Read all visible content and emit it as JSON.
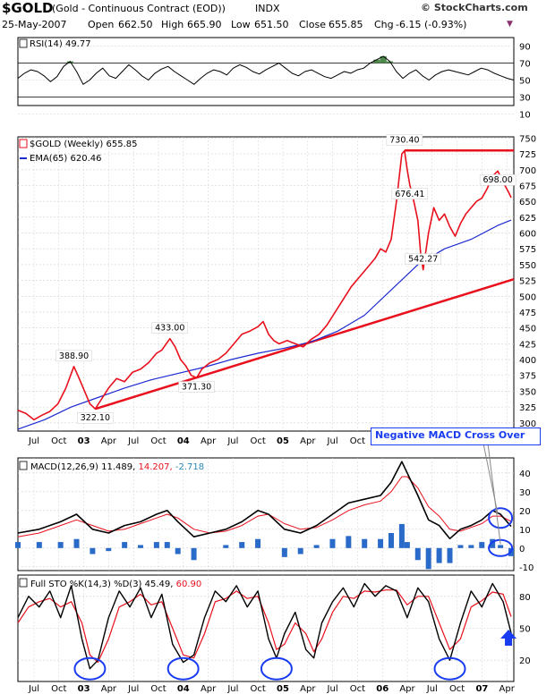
{
  "header": {
    "symbol": "$GOLD",
    "description": "(Gold - Continuous Contract (EOD))",
    "exchange": "INDX",
    "brand": "© StockCharts.com",
    "date": "25-May-2007",
    "open_label": "Open",
    "open_value": "662.50",
    "high_label": "High",
    "high_value": "665.90",
    "low_label": "Low",
    "low_value": "651.50",
    "close_label": "Close",
    "close_value": "655.85",
    "chg_label": "Chg",
    "chg_value": "-6.15 (-0.93%)",
    "chg_arrow": "▼"
  },
  "colors": {
    "price": "#e8101c",
    "ema": "#1c2ad0",
    "trend": "#e8101c",
    "macd_hist": "#2a6ac8",
    "highlight": "#1a3cf0",
    "rsi_fill": "#4e8a4e",
    "panel_bg": "#ffffff",
    "grid": "#d0d0d0"
  },
  "chart_data": [
    {
      "type": "line",
      "panel": "rsi",
      "title": "RSI(14) 49.77",
      "ylim": [
        20,
        100
      ],
      "ticks": [
        90,
        70,
        50,
        30,
        10
      ],
      "reference_lines": [
        70,
        30
      ],
      "series": [
        {
          "name": "RSI(14)",
          "values": [
            52,
            58,
            62,
            60,
            55,
            48,
            54,
            66,
            72,
            60,
            45,
            50,
            58,
            64,
            55,
            52,
            60,
            68,
            62,
            55,
            50,
            58,
            63,
            66,
            60,
            55,
            50,
            45,
            52,
            58,
            62,
            60,
            56,
            64,
            68,
            65,
            60,
            57,
            62,
            66,
            70,
            64,
            58,
            55,
            60,
            62,
            58,
            54,
            52,
            56,
            60,
            58,
            62,
            64,
            70,
            74,
            78,
            72,
            60,
            52,
            58,
            62,
            55,
            50,
            56,
            60,
            62,
            60,
            58,
            56,
            60,
            64,
            62,
            58,
            55,
            52,
            50
          ]
        }
      ]
    },
    {
      "type": "line",
      "panel": "price",
      "title": "$GOLD (Weekly) 655.85",
      "ylim": [
        287,
        752
      ],
      "ticks": [
        750,
        725,
        700,
        675,
        650,
        625,
        600,
        575,
        550,
        525,
        500,
        475,
        450,
        425,
        400,
        375,
        350,
        325,
        300
      ],
      "x_ticks": [
        "Jul",
        "Oct",
        "03",
        "Apr",
        "Jul",
        "Oct",
        "04",
        "Apr",
        "Jul",
        "Oct",
        "05",
        "Apr",
        "Jul",
        "Oct",
        "06",
        "Apr",
        "Jul",
        "Oct",
        "07",
        "Apr"
      ],
      "x_year_ticks": [
        "03",
        "04",
        "05",
        "06",
        "07"
      ],
      "price_points": [
        [
          0,
          320
        ],
        [
          3,
          315
        ],
        [
          6,
          305
        ],
        [
          9,
          312
        ],
        [
          12,
          318
        ],
        [
          15,
          330
        ],
        [
          18,
          355
        ],
        [
          21,
          389
        ],
        [
          23,
          370
        ],
        [
          25,
          350
        ],
        [
          27,
          330
        ],
        [
          29,
          322
        ],
        [
          31,
          335
        ],
        [
          34,
          355
        ],
        [
          37,
          370
        ],
        [
          40,
          365
        ],
        [
          43,
          380
        ],
        [
          46,
          385
        ],
        [
          49,
          395
        ],
        [
          52,
          410
        ],
        [
          54,
          415
        ],
        [
          57,
          433
        ],
        [
          59,
          420
        ],
        [
          61,
          400
        ],
        [
          63,
          390
        ],
        [
          65,
          375
        ],
        [
          67,
          371
        ],
        [
          69,
          385
        ],
        [
          72,
          395
        ],
        [
          75,
          400
        ],
        [
          78,
          410
        ],
        [
          81,
          425
        ],
        [
          84,
          440
        ],
        [
          87,
          445
        ],
        [
          90,
          452
        ],
        [
          92,
          460
        ],
        [
          94,
          440
        ],
        [
          96,
          430
        ],
        [
          98,
          425
        ],
        [
          101,
          430
        ],
        [
          104,
          425
        ],
        [
          107,
          420
        ],
        [
          110,
          432
        ],
        [
          113,
          440
        ],
        [
          116,
          455
        ],
        [
          119,
          475
        ],
        [
          122,
          495
        ],
        [
          125,
          515
        ],
        [
          128,
          530
        ],
        [
          131,
          545
        ],
        [
          134,
          560
        ],
        [
          136,
          575
        ],
        [
          138,
          570
        ],
        [
          140,
          590
        ],
        [
          142,
          650
        ],
        [
          144,
          725
        ],
        [
          145,
          730
        ],
        [
          146,
          700
        ],
        [
          147,
          676
        ],
        [
          148,
          660
        ],
        [
          150,
          620
        ],
        [
          151,
          570
        ],
        [
          152,
          542
        ],
        [
          154,
          600
        ],
        [
          156,
          640
        ],
        [
          158,
          620
        ],
        [
          160,
          630
        ],
        [
          162,
          610
        ],
        [
          164,
          595
        ],
        [
          166,
          615
        ],
        [
          168,
          630
        ],
        [
          170,
          640
        ],
        [
          172,
          650
        ],
        [
          174,
          655
        ],
        [
          176,
          670
        ],
        [
          178,
          690
        ],
        [
          180,
          698
        ],
        [
          182,
          680
        ],
        [
          184,
          665
        ],
        [
          185,
          655.85
        ]
      ],
      "ema_points": [
        [
          0,
          290
        ],
        [
          10,
          305
        ],
        [
          20,
          325
        ],
        [
          30,
          340
        ],
        [
          40,
          355
        ],
        [
          50,
          368
        ],
        [
          60,
          378
        ],
        [
          70,
          388
        ],
        [
          80,
          400
        ],
        [
          90,
          410
        ],
        [
          100,
          418
        ],
        [
          110,
          428
        ],
        [
          120,
          445
        ],
        [
          130,
          470
        ],
        [
          140,
          510
        ],
        [
          150,
          550
        ],
        [
          160,
          575
        ],
        [
          170,
          590
        ],
        [
          180,
          612
        ],
        [
          185,
          620.46
        ]
      ],
      "x_range": [
        0,
        186
      ],
      "series": [
        {
          "name": "$GOLD (Weekly) 655.85"
        },
        {
          "name": "EMA(65) 620.46"
        }
      ],
      "annotations": [
        {
          "label": "388.90",
          "x": 21,
          "y": 389
        },
        {
          "label": "322.10",
          "x": 29,
          "y": 322
        },
        {
          "label": "433.00",
          "x": 57,
          "y": 433
        },
        {
          "label": "371.30",
          "x": 67,
          "y": 371
        },
        {
          "label": "730.40",
          "x": 145,
          "y": 730
        },
        {
          "label": "676.41",
          "x": 147,
          "y": 676
        },
        {
          "label": "542.27",
          "x": 152,
          "y": 542
        },
        {
          "label": "698.00",
          "x": 180,
          "y": 698
        }
      ],
      "trendlines": [
        {
          "from": [
            29,
            322
          ],
          "to": [
            186,
            527
          ]
        },
        {
          "from": [
            145,
            730.4
          ],
          "to": [
            186,
            730.4
          ]
        }
      ],
      "callout": "Negative MACD Cross Over"
    },
    {
      "type": "line",
      "panel": "macd",
      "title_prefix": "MACD(12,26,9)",
      "macd_value": "11.489",
      "signal_value": "14.207",
      "hist_value": "-2.718",
      "ylim": [
        -12,
        48
      ],
      "ticks": [
        40,
        30,
        20,
        10,
        0,
        -10
      ],
      "macd_points": [
        [
          0,
          8
        ],
        [
          8,
          10
        ],
        [
          16,
          14
        ],
        [
          22,
          18
        ],
        [
          28,
          10
        ],
        [
          34,
          8
        ],
        [
          40,
          12
        ],
        [
          46,
          14
        ],
        [
          52,
          18
        ],
        [
          56,
          20
        ],
        [
          60,
          14
        ],
        [
          66,
          6
        ],
        [
          72,
          8
        ],
        [
          78,
          10
        ],
        [
          84,
          14
        ],
        [
          90,
          20
        ],
        [
          94,
          18
        ],
        [
          100,
          10
        ],
        [
          106,
          8
        ],
        [
          112,
          12
        ],
        [
          118,
          18
        ],
        [
          124,
          24
        ],
        [
          130,
          26
        ],
        [
          136,
          28
        ],
        [
          140,
          35
        ],
        [
          144,
          46
        ],
        [
          146,
          40
        ],
        [
          150,
          28
        ],
        [
          154,
          15
        ],
        [
          158,
          12
        ],
        [
          162,
          5
        ],
        [
          166,
          10
        ],
        [
          170,
          12
        ],
        [
          174,
          15
        ],
        [
          178,
          20
        ],
        [
          181,
          18
        ],
        [
          185,
          11.5
        ]
      ],
      "signal_points": [
        [
          0,
          6
        ],
        [
          8,
          8
        ],
        [
          16,
          12
        ],
        [
          22,
          15
        ],
        [
          28,
          12
        ],
        [
          34,
          9
        ],
        [
          40,
          10
        ],
        [
          46,
          13
        ],
        [
          52,
          16
        ],
        [
          56,
          18
        ],
        [
          60,
          16
        ],
        [
          66,
          10
        ],
        [
          72,
          8
        ],
        [
          78,
          9
        ],
        [
          84,
          12
        ],
        [
          90,
          17
        ],
        [
          94,
          18
        ],
        [
          100,
          13
        ],
        [
          106,
          10
        ],
        [
          112,
          11
        ],
        [
          118,
          15
        ],
        [
          124,
          20
        ],
        [
          130,
          23
        ],
        [
          136,
          25
        ],
        [
          140,
          30
        ],
        [
          144,
          38
        ],
        [
          146,
          38
        ],
        [
          150,
          32
        ],
        [
          154,
          22
        ],
        [
          158,
          17
        ],
        [
          162,
          10
        ],
        [
          166,
          9
        ],
        [
          170,
          11
        ],
        [
          174,
          13
        ],
        [
          178,
          17
        ],
        [
          181,
          17
        ],
        [
          185,
          14.2
        ]
      ],
      "series": [
        {
          "name": "MACD(12,26,9) 11.489"
        },
        {
          "name": "14.207"
        },
        {
          "name": "-2.718"
        }
      ]
    },
    {
      "type": "line",
      "panel": "sto",
      "title": "Full STO %K(14,3) %D(3) 45.49, 60.90",
      "title_prefix": "Full STO %K(14,3) %D(3)",
      "k_value": "45.49",
      "d_value": "60.90",
      "ylim": [
        0,
        100
      ],
      "ticks": [
        80,
        50,
        20
      ],
      "k_points": [
        [
          0,
          60
        ],
        [
          4,
          80
        ],
        [
          8,
          70
        ],
        [
          12,
          85
        ],
        [
          16,
          60
        ],
        [
          20,
          90
        ],
        [
          24,
          40
        ],
        [
          27,
          12
        ],
        [
          30,
          20
        ],
        [
          34,
          60
        ],
        [
          38,
          85
        ],
        [
          42,
          70
        ],
        [
          46,
          88
        ],
        [
          50,
          60
        ],
        [
          54,
          82
        ],
        [
          58,
          35
        ],
        [
          62,
          18
        ],
        [
          66,
          25
        ],
        [
          70,
          60
        ],
        [
          74,
          85
        ],
        [
          78,
          75
        ],
        [
          82,
          90
        ],
        [
          86,
          70
        ],
        [
          90,
          85
        ],
        [
          94,
          40
        ],
        [
          97,
          22
        ],
        [
          100,
          45
        ],
        [
          104,
          65
        ],
        [
          108,
          30
        ],
        [
          111,
          22
        ],
        [
          114,
          55
        ],
        [
          118,
          75
        ],
        [
          122,
          88
        ],
        [
          126,
          70
        ],
        [
          130,
          92
        ],
        [
          134,
          80
        ],
        [
          138,
          90
        ],
        [
          142,
          85
        ],
        [
          146,
          60
        ],
        [
          150,
          88
        ],
        [
          154,
          75
        ],
        [
          158,
          40
        ],
        [
          162,
          20
        ],
        [
          166,
          55
        ],
        [
          170,
          85
        ],
        [
          174,
          70
        ],
        [
          178,
          92
        ],
        [
          182,
          75
        ],
        [
          185,
          45.49
        ]
      ],
      "d_points": [
        [
          0,
          55
        ],
        [
          4,
          70
        ],
        [
          8,
          75
        ],
        [
          12,
          78
        ],
        [
          16,
          70
        ],
        [
          20,
          75
        ],
        [
          24,
          55
        ],
        [
          27,
          25
        ],
        [
          30,
          18
        ],
        [
          34,
          40
        ],
        [
          38,
          70
        ],
        [
          42,
          75
        ],
        [
          46,
          82
        ],
        [
          50,
          72
        ],
        [
          54,
          75
        ],
        [
          58,
          50
        ],
        [
          62,
          25
        ],
        [
          66,
          22
        ],
        [
          70,
          45
        ],
        [
          74,
          75
        ],
        [
          78,
          78
        ],
        [
          82,
          85
        ],
        [
          86,
          78
        ],
        [
          90,
          80
        ],
        [
          94,
          55
        ],
        [
          97,
          30
        ],
        [
          100,
          35
        ],
        [
          104,
          55
        ],
        [
          108,
          45
        ],
        [
          111,
          28
        ],
        [
          114,
          40
        ],
        [
          118,
          65
        ],
        [
          122,
          80
        ],
        [
          126,
          78
        ],
        [
          130,
          85
        ],
        [
          134,
          84
        ],
        [
          138,
          86
        ],
        [
          142,
          86
        ],
        [
          146,
          72
        ],
        [
          150,
          80
        ],
        [
          154,
          80
        ],
        [
          158,
          55
        ],
        [
          162,
          30
        ],
        [
          166,
          40
        ],
        [
          170,
          70
        ],
        [
          174,
          76
        ],
        [
          178,
          84
        ],
        [
          182,
          82
        ],
        [
          185,
          60.9
        ]
      ],
      "series": [
        {
          "name": "Full STO %K(14,3)"
        },
        {
          "name": "%D(3)"
        }
      ],
      "circles_at": [
        27,
        62,
        97,
        162
      ],
      "x_ticks": [
        "Jul",
        "Oct",
        "03",
        "Apr",
        "Jul",
        "Oct",
        "04",
        "Apr",
        "Jul",
        "Oct",
        "05",
        "Apr",
        "Jul",
        "Oct",
        "06",
        "Apr",
        "Jul",
        "Oct",
        "07",
        "Apr"
      ]
    }
  ]
}
